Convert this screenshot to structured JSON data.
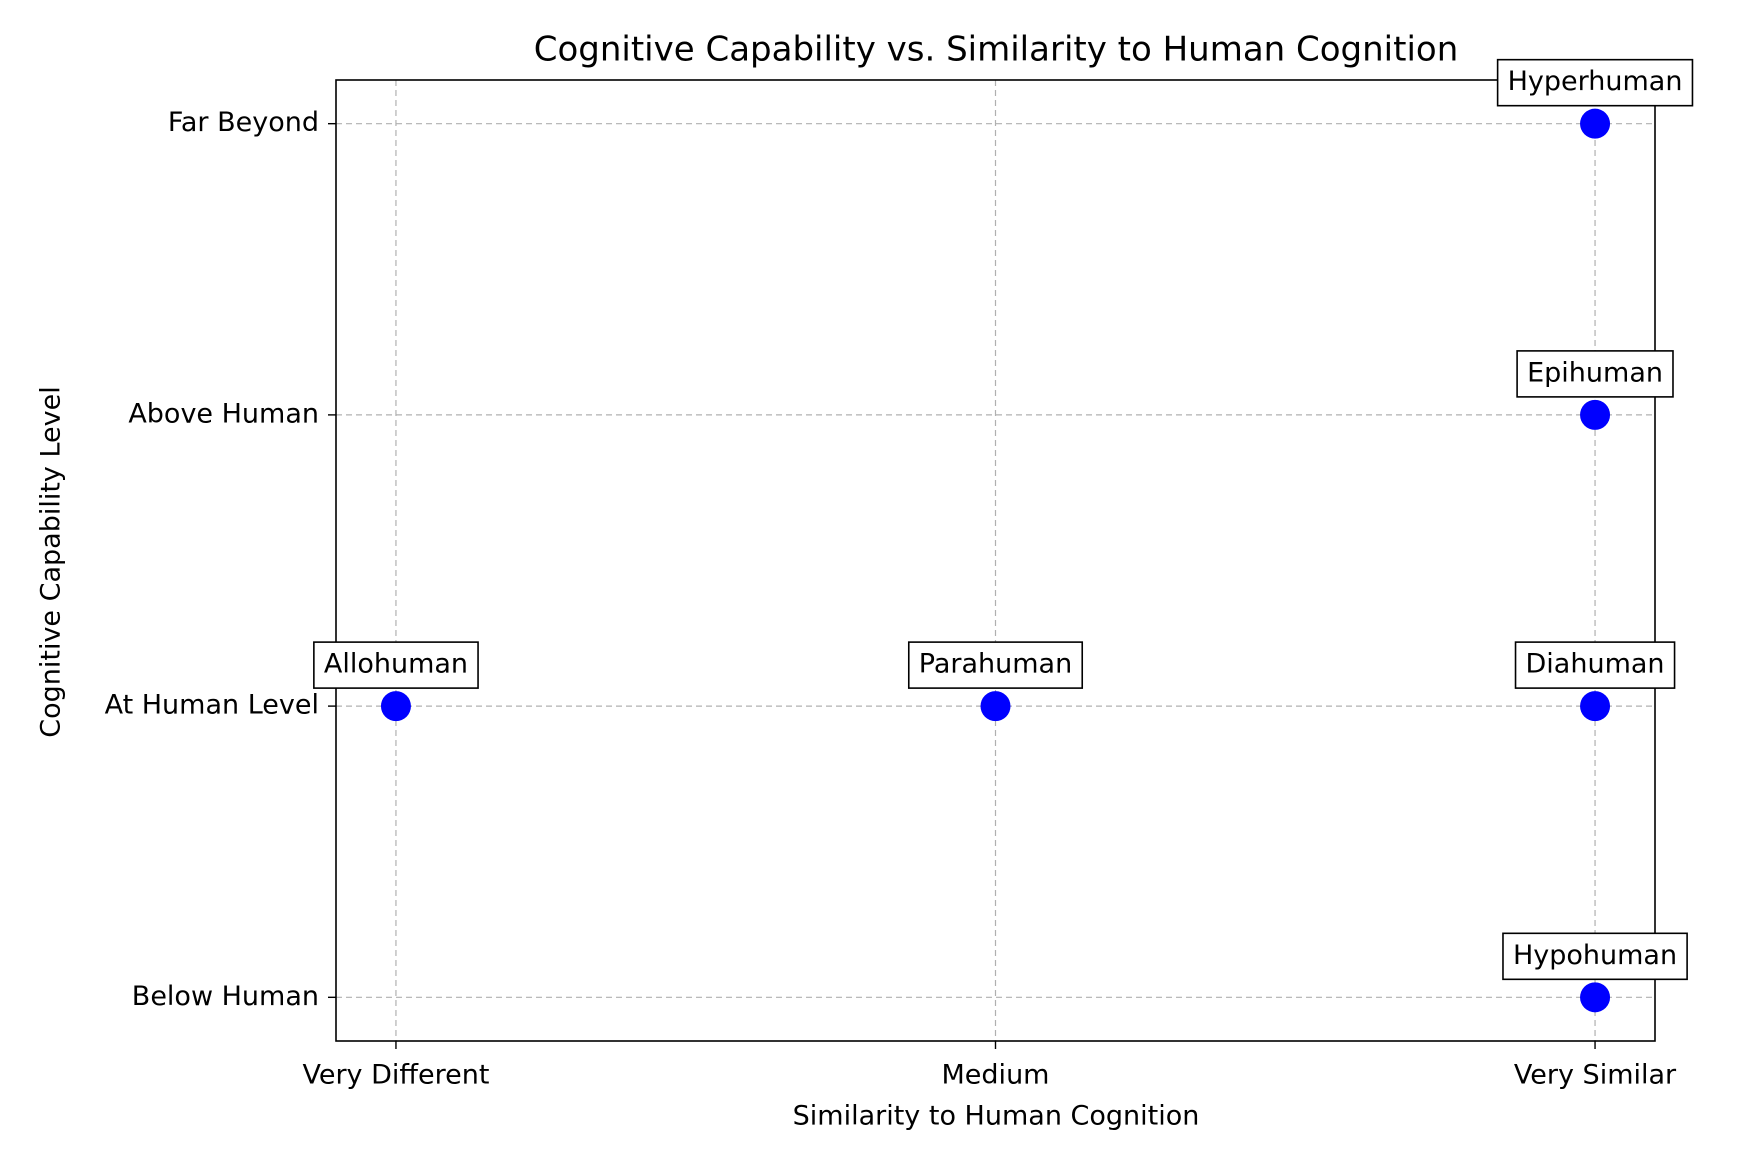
{
  "chart_data": {
    "type": "scatter",
    "title": "Cognitive Capability vs. Similarity to Human Cognition",
    "x_label": "Similarity to Human Cognition",
    "y_label": "Cognitive Capability Level",
    "x": [
      3,
      3,
      1,
      2,
      3,
      3
    ],
    "values": [
      4,
      3,
      2,
      2,
      2,
      1
    ],
    "labels": [
      "Hyperhuman",
      "Epihuman",
      "Allohuman",
      "Parahuman",
      "Diahuman",
      "Hypohuman"
    ],
    "color": "#0000ff",
    "xlim": [
      0.9,
      3.1
    ],
    "xticks": [
      {
        "value": 1,
        "label": "Very Different"
      },
      {
        "value": 2,
        "label": "Medium"
      },
      {
        "value": 3,
        "label": "Very Similar"
      }
    ],
    "ylim": [
      0.85,
      4.15
    ],
    "yticks": [
      {
        "value": 1,
        "label": "Below Human"
      },
      {
        "value": 2,
        "label": "At Human Level"
      },
      {
        "value": 3,
        "label": "Above Human"
      },
      {
        "value": 4,
        "label": "Far Beyond"
      }
    ],
    "grid": true
  }
}
